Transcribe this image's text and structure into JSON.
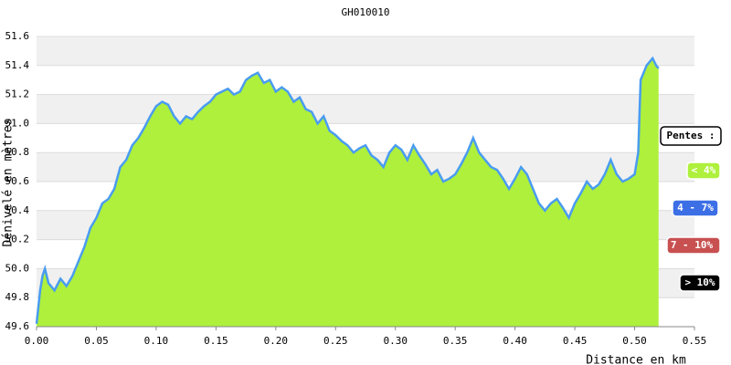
{
  "chart_data": {
    "type": "area",
    "title": "GH010010",
    "xlabel": "Distance en km",
    "ylabel": "Dénivelé en mètres",
    "xlim": [
      0,
      0.55
    ],
    "ylim": [
      49.6,
      51.6
    ],
    "xticks": [
      {
        "value": 0,
        "label": "0.00"
      },
      {
        "value": 0.05,
        "label": "0.05"
      },
      {
        "value": 0.1,
        "label": "0.10"
      },
      {
        "value": 0.15,
        "label": "0.15"
      },
      {
        "value": 0.2,
        "label": "0.20"
      },
      {
        "value": 0.25,
        "label": "0.25"
      },
      {
        "value": 0.3,
        "label": "0.30"
      },
      {
        "value": 0.35,
        "label": "0.35"
      },
      {
        "value": 0.4,
        "label": "0.40"
      },
      {
        "value": 0.45,
        "label": "0.45"
      },
      {
        "value": 0.5,
        "label": "0.50"
      },
      {
        "value": 0.55,
        "label": "0.55"
      }
    ],
    "yticks": [
      49.6,
      49.8,
      {
        "value": 50,
        "label": "50.0"
      },
      50.2,
      50.4,
      50.6,
      50.8,
      {
        "value": 51,
        "label": "51.0"
      },
      51.2,
      51.4,
      51.6
    ],
    "grid": true,
    "color": "#4a9cf0",
    "fill_color": "#aef03c",
    "x": [
      0,
      0.003,
      0.005,
      0.007,
      0.01,
      0.015,
      0.02,
      0.025,
      0.03,
      0.035,
      0.04,
      0.045,
      0.05,
      0.055,
      0.06,
      0.065,
      0.07,
      0.075,
      0.08,
      0.085,
      0.09,
      0.095,
      0.1,
      0.105,
      0.11,
      0.115,
      0.12,
      0.125,
      0.13,
      0.135,
      0.14,
      0.145,
      0.15,
      0.155,
      0.16,
      0.165,
      0.17,
      0.175,
      0.18,
      0.185,
      0.19,
      0.195,
      0.2,
      0.205,
      0.21,
      0.215,
      0.22,
      0.225,
      0.23,
      0.235,
      0.24,
      0.245,
      0.25,
      0.255,
      0.26,
      0.265,
      0.27,
      0.275,
      0.28,
      0.285,
      0.29,
      0.295,
      0.3,
      0.305,
      0.31,
      0.315,
      0.32,
      0.325,
      0.33,
      0.335,
      0.34,
      0.345,
      0.35,
      0.355,
      0.36,
      0.365,
      0.37,
      0.375,
      0.38,
      0.385,
      0.39,
      0.395,
      0.4,
      0.405,
      0.41,
      0.415,
      0.42,
      0.425,
      0.43,
      0.435,
      0.44,
      0.445,
      0.45,
      0.455,
      0.46,
      0.465,
      0.47,
      0.475,
      0.48,
      0.485,
      0.49,
      0.495,
      0.5,
      0.503,
      0.505,
      0.51,
      0.515,
      0.518,
      0.52
    ],
    "values": [
      49.62,
      49.85,
      49.95,
      50.0,
      49.9,
      49.85,
      49.93,
      49.88,
      49.95,
      50.05,
      50.15,
      50.28,
      50.35,
      50.45,
      50.48,
      50.55,
      50.7,
      50.75,
      50.85,
      50.9,
      50.97,
      51.05,
      51.12,
      51.15,
      51.13,
      51.05,
      51.0,
      51.05,
      51.03,
      51.08,
      51.12,
      51.15,
      51.2,
      51.22,
      51.24,
      51.2,
      51.22,
      51.3,
      51.33,
      51.35,
      51.28,
      51.3,
      51.22,
      51.25,
      51.22,
      51.15,
      51.18,
      51.1,
      51.08,
      51.0,
      51.05,
      50.95,
      50.92,
      50.88,
      50.85,
      50.8,
      50.83,
      50.85,
      50.78,
      50.75,
      50.7,
      50.8,
      50.85,
      50.82,
      50.75,
      50.85,
      50.78,
      50.72,
      50.65,
      50.68,
      50.6,
      50.62,
      50.65,
      50.72,
      50.8,
      50.9,
      50.8,
      50.75,
      50.7,
      50.68,
      50.62,
      50.55,
      50.62,
      50.7,
      50.65,
      50.55,
      50.45,
      50.4,
      50.45,
      50.48,
      50.42,
      50.35,
      50.45,
      50.52,
      50.6,
      50.55,
      50.58,
      50.65,
      50.75,
      50.65,
      50.6,
      50.62,
      50.65,
      50.8,
      51.3,
      51.4,
      51.45,
      51.4,
      51.38
    ],
    "legend_title": "Pentes :",
    "legend": [
      {
        "label": "< 4%",
        "color": "#aef03c"
      },
      {
        "label": "4 - 7%",
        "color": "#3c6ee6"
      },
      {
        "label": "7 - 10%",
        "color": "#c85050"
      },
      {
        "label": "> 10%",
        "color": "#000000"
      }
    ]
  }
}
